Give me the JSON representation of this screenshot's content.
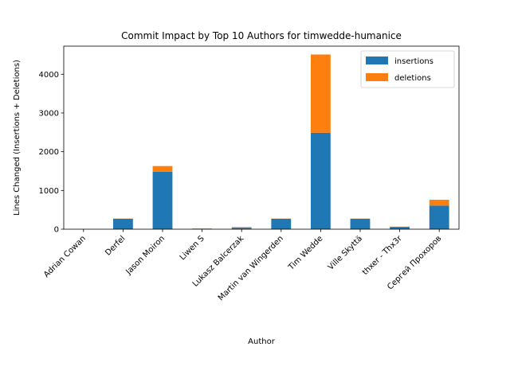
{
  "chart_data": {
    "type": "bar",
    "stacked": true,
    "title": "Commit Impact by Top 10 Authors for timwedde-humanice",
    "xlabel": "Author",
    "ylabel": "Lines Changed (Insertions + Deletions)",
    "categories": [
      "Adrian Cowan",
      "Derfel",
      "Jason Moiron",
      "Liwen S",
      "Lukasz Balcerzak",
      "Martin van Wingerden",
      "Tim Wedde",
      "Ville Skyttä",
      "thxer - Thx3r",
      "Сергей Прохоров"
    ],
    "series": [
      {
        "name": "insertions",
        "color": "#1f77b4",
        "values": [
          2,
          270,
          1480,
          8,
          35,
          270,
          2490,
          270,
          60,
          610
        ]
      },
      {
        "name": "deletions",
        "color": "#ff7f0e",
        "values": [
          1,
          5,
          150,
          10,
          20,
          5,
          2020,
          5,
          5,
          150
        ]
      }
    ],
    "ylim": [
      0,
      4725
    ],
    "yticks": [
      0,
      1000,
      2000,
      3000,
      4000
    ],
    "legend": "top-right",
    "grid": false
  }
}
